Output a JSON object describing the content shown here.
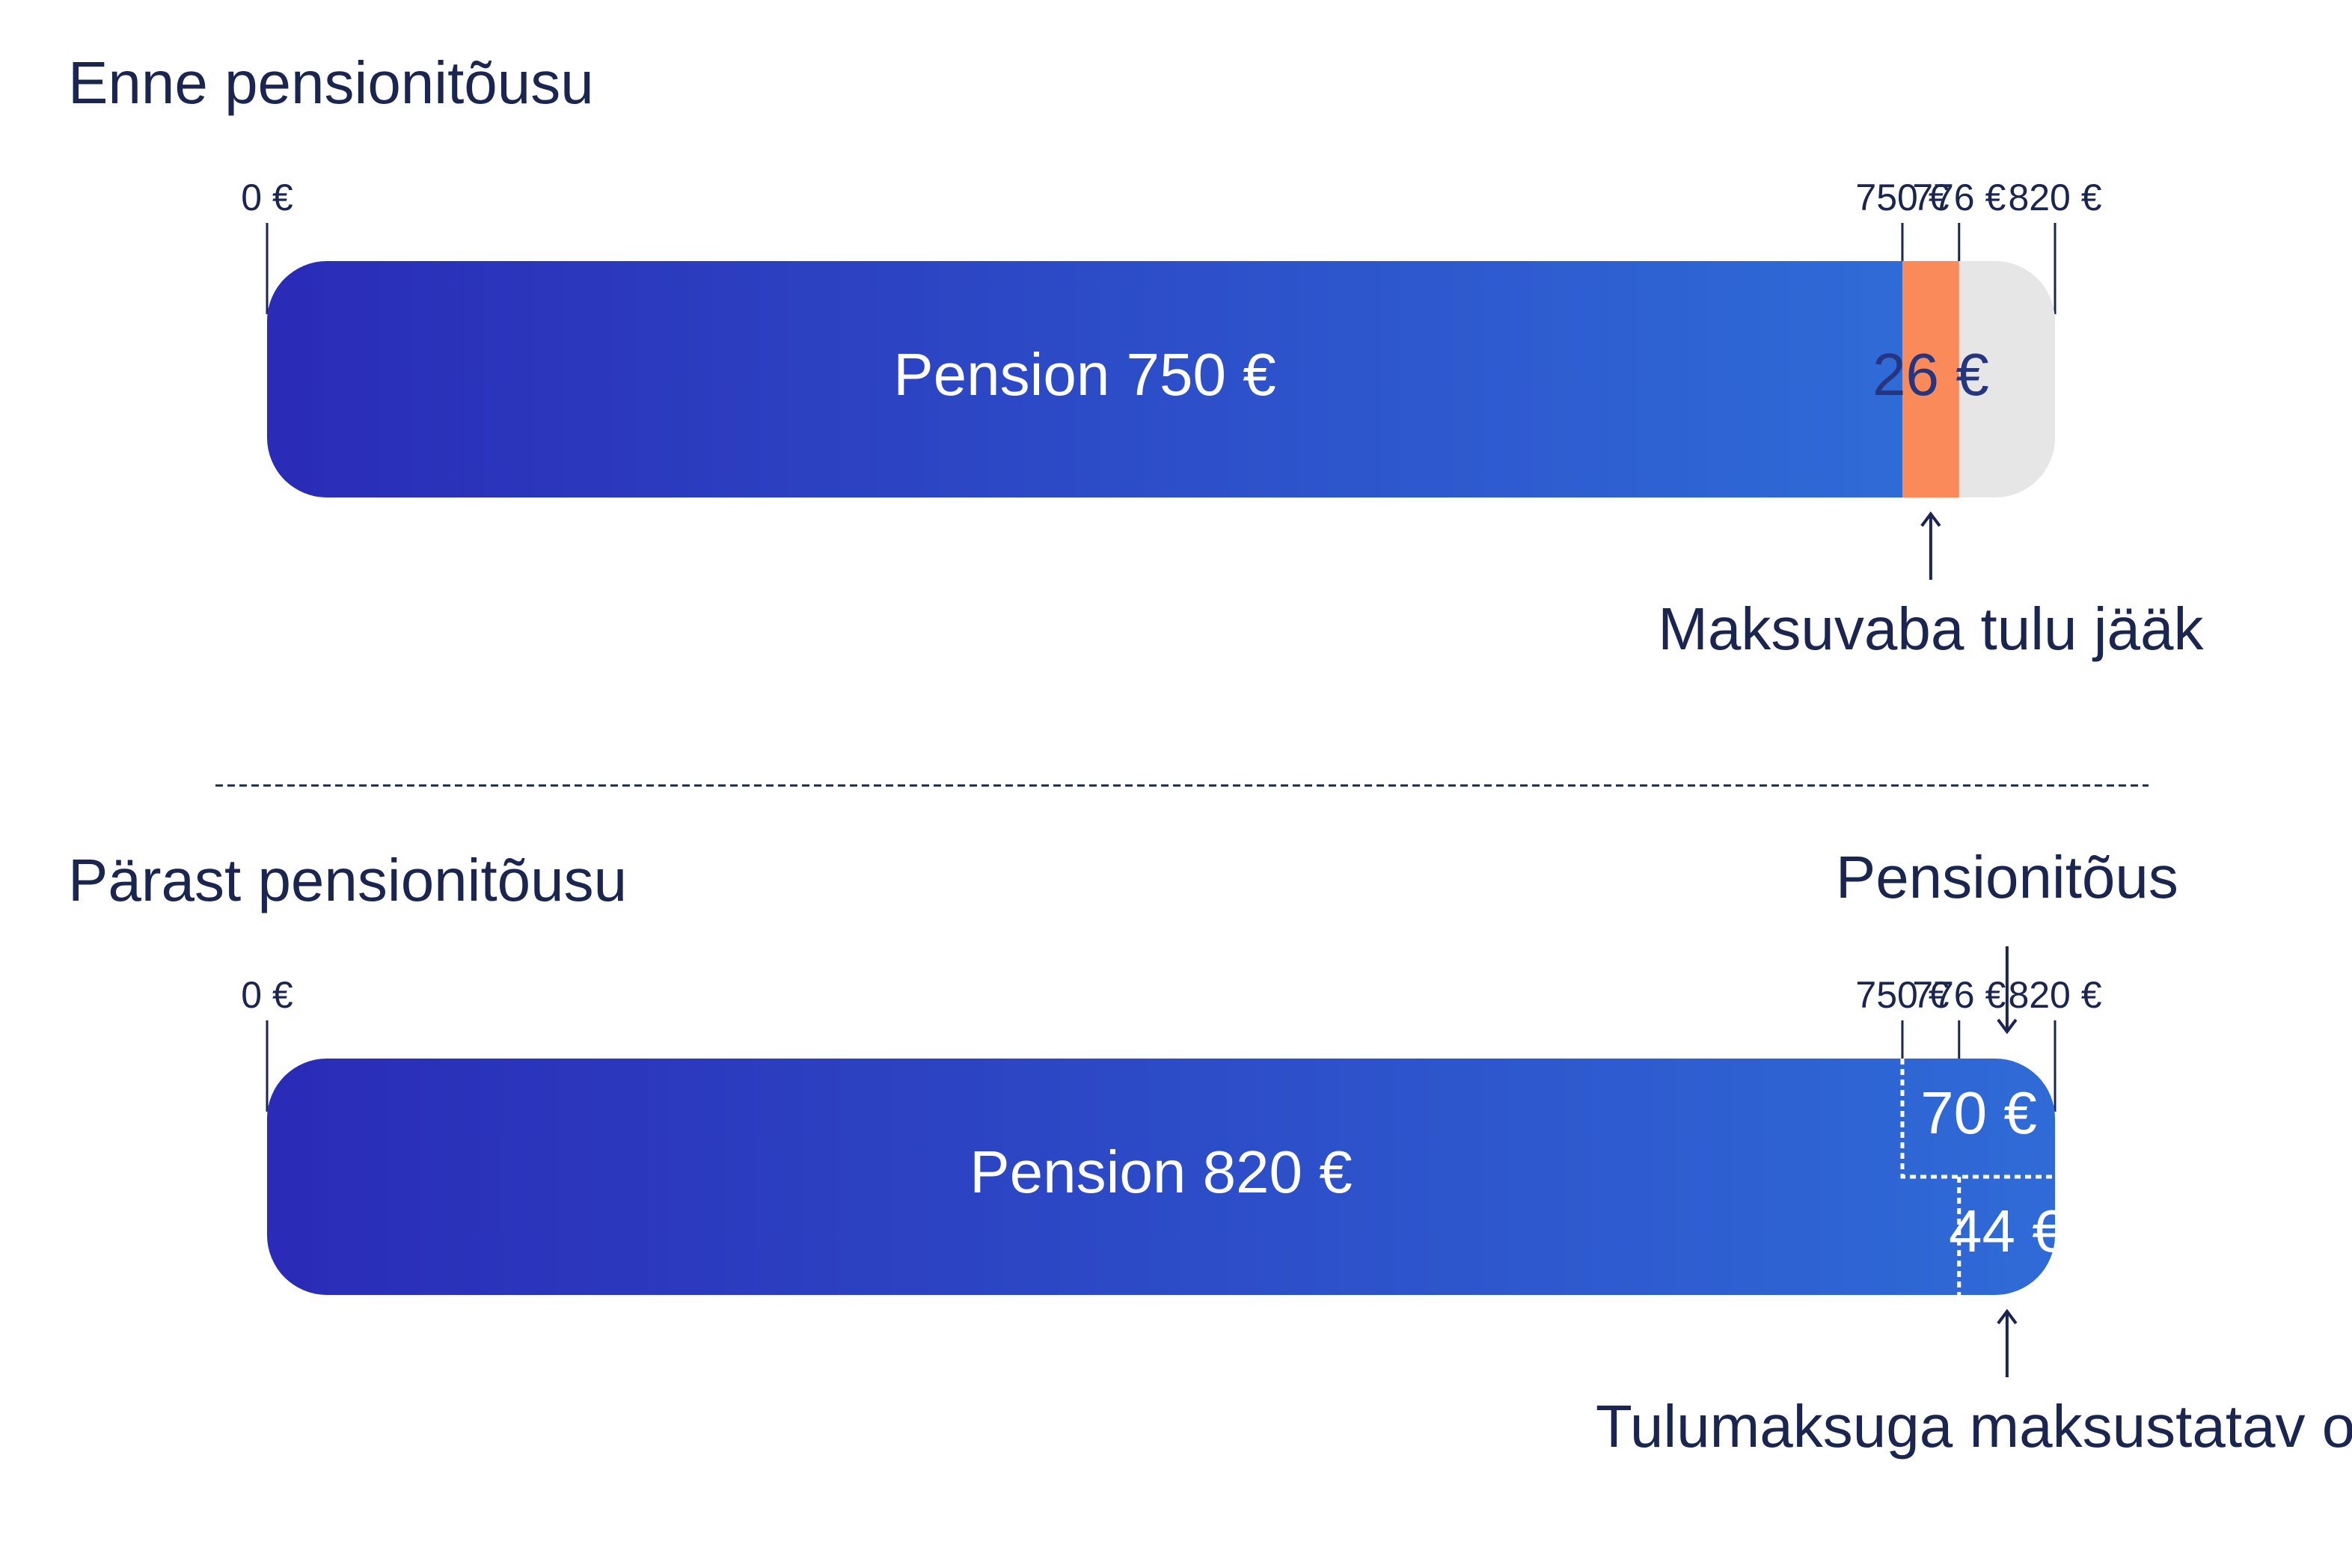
{
  "chart_data": [
    {
      "type": "bar",
      "title": "Enne pensionitõusu",
      "xlim": [
        0,
        820
      ],
      "xticks": [
        {
          "value": 0,
          "label": "0 €"
        },
        {
          "value": 750,
          "label": "750 €"
        },
        {
          "value": 776,
          "label": "776 €"
        },
        {
          "value": 820,
          "label": "820 €"
        }
      ],
      "segments": [
        {
          "value": 750,
          "label": "Pension 750 €",
          "color": [
            "#2a2bb7",
            "#2f6bd7"
          ]
        },
        {
          "value": 26,
          "label": "26 €",
          "color": "#fb8a5a"
        }
      ],
      "annotation_below": "Maksuvaba tulu jääk"
    },
    {
      "type": "bar",
      "title": "Pärast pensionitõusu",
      "xlim": [
        0,
        820
      ],
      "xticks": [
        {
          "value": 0,
          "label": "0 €"
        },
        {
          "value": 750,
          "label": "750 €"
        },
        {
          "value": 776,
          "label": "776 €"
        },
        {
          "value": 820,
          "label": "820 €"
        }
      ],
      "segments": [
        {
          "value": 820,
          "label": "Pension 820 €",
          "color": [
            "#2a2bb7",
            "#2f6bd7"
          ]
        }
      ],
      "overlays": [
        {
          "value": 70,
          "label": "70 €"
        },
        {
          "value": 44,
          "label": "44 €"
        }
      ],
      "annotation_above": "Pensionitõus",
      "annotation_below": "Tulumaksuga maksustatav osa"
    }
  ]
}
